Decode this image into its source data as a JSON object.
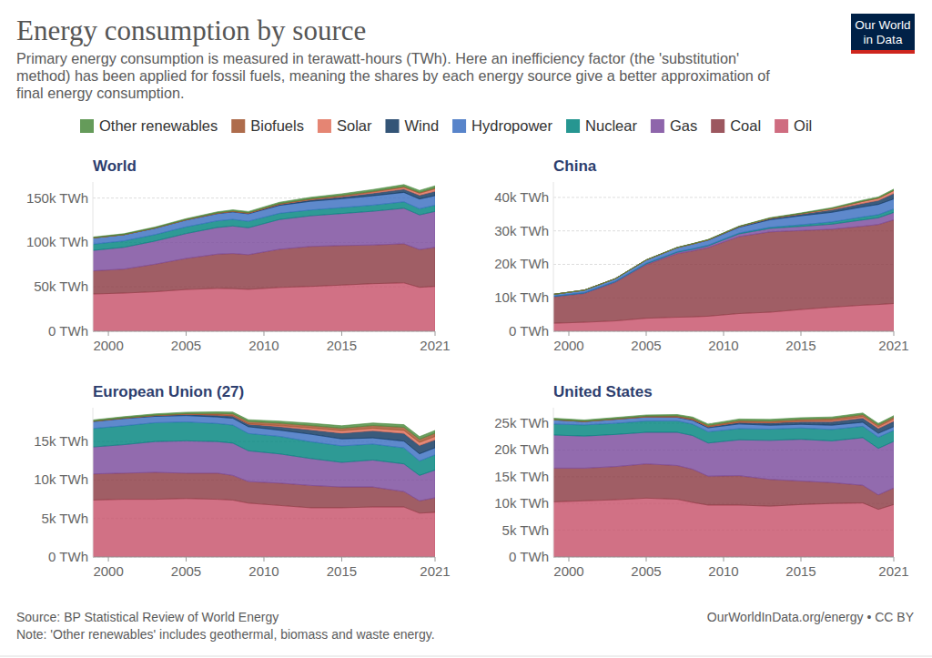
{
  "page": {
    "title": "Energy consumption by source",
    "subtitle": [
      "Primary energy consumption is measured in terawatt-hours (TWh). Here an inefficiency factor (the 'substitution'",
      "method) has been applied for fossil fuels, meaning the shares by each energy source give a better approximation of",
      "final energy consumption."
    ],
    "logo": [
      "Our World",
      "in Data"
    ],
    "source": "Source: BP Statistical Review of World Energy",
    "note": "Note: 'Other renewables' includes geothermal, biomass and waste energy.",
    "credit": "OurWorldInData.org/energy • CC BY"
  },
  "chart_data": [
    {
      "type": "area",
      "stacked": true,
      "grid": true,
      "legend": "top",
      "title": "World",
      "x": [
        1999,
        2001,
        2003,
        2005,
        2007,
        2008,
        2009,
        2011,
        2013,
        2015,
        2017,
        2019,
        2020,
        2021
      ],
      "xlim": [
        1999,
        2021
      ],
      "xticks": [
        2000,
        2005,
        2010,
        2015,
        2021
      ],
      "ylim": [
        0,
        168000
      ],
      "yticks": [
        {
          "value": 0,
          "label": "0 TWh"
        },
        {
          "value": 50000,
          "label": "50k TWh"
        },
        {
          "value": 100000,
          "label": "100k TWh"
        },
        {
          "value": 150000,
          "label": "150k TWh"
        }
      ],
      "series": [
        {
          "name": "Oil",
          "color": "#c7526a",
          "values": [
            42000,
            43000,
            44500,
            47000,
            48300,
            48000,
            47200,
            49300,
            50500,
            52000,
            53600,
            54500,
            49500,
            50500
          ]
        },
        {
          "name": "Coal",
          "color": "#8b3a43",
          "values": [
            26000,
            27000,
            31000,
            35000,
            38500,
            39500,
            39000,
            43000,
            45000,
            44500,
            43500,
            44000,
            42500,
            44000
          ]
        },
        {
          "name": "Gas",
          "color": "#7a4a9c",
          "values": [
            23000,
            24500,
            26000,
            28000,
            30000,
            31000,
            30300,
            33500,
            34500,
            36000,
            38000,
            40000,
            39000,
            40400
          ]
        },
        {
          "name": "Nuclear",
          "color": "#00847e",
          "values": [
            7000,
            7200,
            7300,
            7500,
            7500,
            7400,
            7300,
            7000,
            6500,
            6700,
            6900,
            7200,
            6900,
            7000
          ]
        },
        {
          "name": "Hydropower",
          "color": "#3b6fc1",
          "values": [
            7000,
            7000,
            7200,
            7700,
            8100,
            8400,
            8400,
            8900,
            9800,
            10000,
            10500,
            10600,
            11000,
            10800
          ]
        },
        {
          "name": "Wind",
          "color": "#10375f",
          "values": [
            50,
            100,
            200,
            270,
            440,
            570,
            710,
            1150,
            1660,
            2140,
            2960,
            3670,
            4150,
            4870
          ]
        },
        {
          "name": "Solar",
          "color": "#e0705b",
          "values": [
            2,
            3,
            5,
            10,
            20,
            30,
            50,
            170,
            380,
            670,
            1150,
            1860,
            2240,
            2700
          ]
        },
        {
          "name": "Biofuels",
          "color": "#a0522d",
          "values": [
            100,
            110,
            160,
            220,
            380,
            500,
            540,
            700,
            780,
            860,
            930,
            1110,
            1000,
            1100
          ]
        },
        {
          "name": "Other renewables",
          "color": "#4a8a3d",
          "values": [
            900,
            950,
            1020,
            1100,
            1200,
            1260,
            1320,
            1500,
            1680,
            1850,
            2000,
            2180,
            2250,
            2350
          ]
        }
      ]
    },
    {
      "type": "area",
      "stacked": true,
      "grid": true,
      "title": "China",
      "x": [
        1999,
        2001,
        2003,
        2005,
        2007,
        2008,
        2009,
        2011,
        2013,
        2015,
        2017,
        2019,
        2020,
        2021
      ],
      "xlim": [
        1999,
        2021
      ],
      "xticks": [
        2000,
        2005,
        2010,
        2015,
        2021
      ],
      "ylim": [
        0,
        44600
      ],
      "yticks": [
        {
          "value": 0,
          "label": "0 TWh"
        },
        {
          "value": 10000,
          "label": "10k TWh"
        },
        {
          "value": 20000,
          "label": "20k TWh"
        },
        {
          "value": 30000,
          "label": "30k TWh"
        },
        {
          "value": 40000,
          "label": "40k TWh"
        }
      ],
      "series": [
        {
          "name": "Oil",
          "color": "#c7526a",
          "values": [
            2400,
            2700,
            3100,
            3900,
            4200,
            4300,
            4500,
            5300,
            5700,
            6500,
            7200,
            7800,
            8000,
            8300
          ]
        },
        {
          "name": "Coal",
          "color": "#8b3a43",
          "values": [
            7900,
            8600,
            11500,
            16000,
            19000,
            19700,
            20500,
            23000,
            24000,
            23600,
            23300,
            23600,
            23900,
            25000
          ]
        },
        {
          "name": "Gas",
          "color": "#7a4a9c",
          "values": [
            120,
            160,
            200,
            250,
            400,
            480,
            520,
            800,
            1050,
            1250,
            1500,
            1870,
            2000,
            2200
          ]
        },
        {
          "name": "Nuclear",
          "color": "#00847e",
          "values": [
            40,
            50,
            120,
            150,
            180,
            190,
            200,
            250,
            320,
            470,
            680,
            900,
            950,
            1040
          ]
        },
        {
          "name": "Hydropower",
          "color": "#3b6fc1",
          "values": [
            570,
            770,
            780,
            1000,
            1200,
            1400,
            1500,
            1720,
            2250,
            2700,
            2860,
            3000,
            3050,
            3000
          ]
        },
        {
          "name": "Wind",
          "color": "#10375f",
          "values": [
            2,
            4,
            6,
            6,
            15,
            35,
            70,
            190,
            360,
            480,
            770,
            1050,
            1160,
            1640
          ]
        },
        {
          "name": "Solar",
          "color": "#e0705b",
          "values": [
            0,
            0,
            0,
            0,
            0,
            0,
            1,
            8,
            40,
            110,
            300,
            570,
            660,
            830
          ]
        },
        {
          "name": "Biofuels",
          "color": "#a0522d",
          "values": [
            0,
            0,
            0,
            10,
            30,
            40,
            50,
            60,
            70,
            70,
            70,
            80,
            90,
            90
          ]
        },
        {
          "name": "Other renewables",
          "color": "#4a8a3d",
          "values": [
            10,
            10,
            20,
            30,
            50,
            60,
            70,
            90,
            140,
            190,
            270,
            320,
            330,
            380
          ]
        }
      ]
    },
    {
      "type": "area",
      "stacked": true,
      "grid": true,
      "title": "European Union (27)",
      "x": [
        1999,
        2001,
        2003,
        2005,
        2007,
        2008,
        2009,
        2011,
        2013,
        2015,
        2017,
        2019,
        2020,
        2021
      ],
      "xlim": [
        1999,
        2021
      ],
      "xticks": [
        2000,
        2005,
        2010,
        2015,
        2021
      ],
      "ylim": [
        0,
        19400
      ],
      "yticks": [
        {
          "value": 0,
          "label": "0 TWh"
        },
        {
          "value": 5000,
          "label": "5k TWh"
        },
        {
          "value": 10000,
          "label": "10k TWh"
        },
        {
          "value": 15000,
          "label": "15k TWh"
        }
      ],
      "series": [
        {
          "name": "Oil",
          "color": "#c7526a",
          "values": [
            7400,
            7500,
            7500,
            7600,
            7500,
            7400,
            7000,
            6700,
            6400,
            6400,
            6500,
            6500,
            5700,
            5800
          ]
        },
        {
          "name": "Coal",
          "color": "#8b3a43",
          "values": [
            3400,
            3400,
            3500,
            3300,
            3400,
            3200,
            2800,
            2900,
            2900,
            2700,
            2600,
            2000,
            1600,
            1900
          ]
        },
        {
          "name": "Gas",
          "color": "#7a4a9c",
          "values": [
            3500,
            3700,
            4000,
            4200,
            4100,
            4200,
            4000,
            3800,
            3500,
            3200,
            3500,
            3600,
            3300,
            3600
          ]
        },
        {
          "name": "Nuclear",
          "color": "#00847e",
          "values": [
            2400,
            2450,
            2450,
            2450,
            2350,
            2350,
            2250,
            2280,
            2180,
            2140,
            2070,
            2080,
            1880,
            1980
          ]
        },
        {
          "name": "Hydropower",
          "color": "#3b6fc1",
          "values": [
            900,
            940,
            830,
            830,
            850,
            880,
            880,
            800,
            980,
            910,
            810,
            880,
            930,
            920
          ]
        },
        {
          "name": "Wind",
          "color": "#10375f",
          "values": [
            40,
            60,
            110,
            170,
            250,
            300,
            340,
            460,
            580,
            750,
            920,
            1010,
            1080,
            1020
          ]
        },
        {
          "name": "Solar",
          "color": "#e0705b",
          "values": [
            0,
            1,
            2,
            5,
            13,
            25,
            40,
            140,
            230,
            300,
            320,
            370,
            400,
            450
          ]
        },
        {
          "name": "Biofuels",
          "color": "#a0522d",
          "values": [
            20,
            30,
            40,
            80,
            200,
            260,
            300,
            320,
            320,
            340,
            370,
            420,
            410,
            420
          ]
        },
        {
          "name": "Other renewables",
          "color": "#4a8a3d",
          "values": [
            150,
            160,
            170,
            180,
            200,
            220,
            230,
            260,
            300,
            320,
            330,
            340,
            350,
            360
          ]
        }
      ]
    },
    {
      "type": "area",
      "stacked": true,
      "grid": true,
      "title": "United States",
      "x": [
        1999,
        2001,
        2003,
        2005,
        2007,
        2008,
        2009,
        2011,
        2013,
        2015,
        2017,
        2019,
        2020,
        2021
      ],
      "xlim": [
        1999,
        2021
      ],
      "xticks": [
        2000,
        2005,
        2010,
        2015,
        2021
      ],
      "ylim": [
        0,
        27900
      ],
      "yticks": [
        {
          "value": 0,
          "label": "0 TWh"
        },
        {
          "value": 5000,
          "label": "5k TWh"
        },
        {
          "value": 10000,
          "label": "10k TWh"
        },
        {
          "value": 15000,
          "label": "15k TWh"
        },
        {
          "value": 20000,
          "label": "20k TWh"
        },
        {
          "value": 25000,
          "label": "25k TWh"
        }
      ],
      "series": [
        {
          "name": "Oil",
          "color": "#c7526a",
          "values": [
            10300,
            10500,
            10700,
            11000,
            10800,
            10200,
            9700,
            9700,
            9500,
            9800,
            10000,
            10100,
            8900,
            9800
          ]
        },
        {
          "name": "Coal",
          "color": "#8b3a43",
          "values": [
            6300,
            6100,
            6200,
            6400,
            6300,
            6200,
            5400,
            5500,
            5000,
            4400,
            3900,
            3300,
            2700,
            3100
          ]
        },
        {
          "name": "Gas",
          "color": "#7a4a9c",
          "values": [
            6200,
            6000,
            6000,
            5900,
            6200,
            6300,
            6200,
            6700,
            7300,
            7800,
            7800,
            8900,
            8700,
            8700
          ]
        },
        {
          "name": "Nuclear",
          "color": "#00847e",
          "values": [
            2050,
            2090,
            2080,
            2120,
            2150,
            2130,
            2110,
            2080,
            2090,
            2110,
            2130,
            2140,
            2080,
            2070
          ]
        },
        {
          "name": "Hydropower",
          "color": "#3b6fc1",
          "values": [
            800,
            620,
            750,
            740,
            660,
            700,
            740,
            880,
            730,
            680,
            800,
            740,
            740,
            700
          ]
        },
        {
          "name": "Wind",
          "color": "#10375f",
          "values": [
            10,
            18,
            30,
            48,
            93,
            150,
            200,
            330,
            460,
            520,
            680,
            800,
            920,
            1020
          ]
        },
        {
          "name": "Solar",
          "color": "#e0705b",
          "values": [
            1,
            1,
            1,
            1,
            2,
            2,
            3,
            10,
            40,
            100,
            200,
            270,
            310,
            400
          ]
        },
        {
          "name": "Biofuels",
          "color": "#a0522d",
          "values": [
            30,
            40,
            70,
            100,
            170,
            220,
            240,
            310,
            310,
            340,
            370,
            370,
            320,
            350
          ]
        },
        {
          "name": "Other renewables",
          "color": "#4a8a3d",
          "values": [
            250,
            240,
            240,
            240,
            250,
            260,
            260,
            280,
            290,
            290,
            290,
            290,
            280,
            280
          ]
        }
      ]
    }
  ]
}
